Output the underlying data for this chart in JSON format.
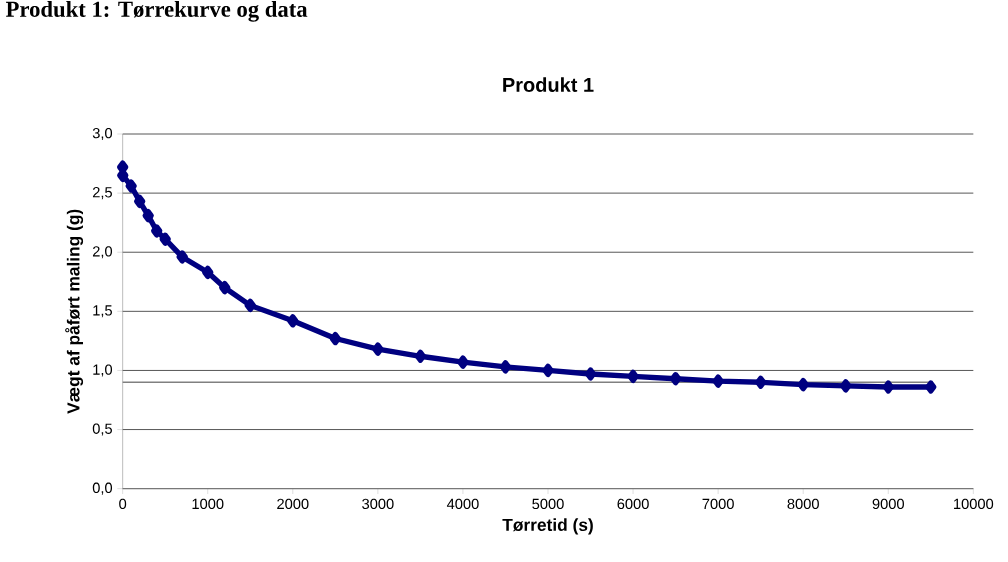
{
  "chart_data": {
    "type": "line",
    "title": "Produkt 1",
    "xlabel": "Tørretid (s)",
    "ylabel": "Vægt af påført maling (g)",
    "annotations": [
      "Produkt 1: Tørrekurve og data"
    ],
    "x": [
      0,
      1,
      100,
      200,
      300,
      400,
      500,
      700,
      1000,
      1200,
      1500,
      2000,
      2500,
      3000,
      3500,
      4000,
      4500,
      5000,
      5500,
      6000,
      6500,
      7000,
      7500,
      8000,
      8500,
      9000,
      9500
    ],
    "series": [
      {
        "color": "#000080",
        "values": [
          2.72,
          2.65,
          2.56,
          2.43,
          2.31,
          2.18,
          2.11,
          1.96,
          1.83,
          1.7,
          1.55,
          1.42,
          1.27,
          1.18,
          1.12,
          1.07,
          1.03,
          1.0,
          0.97,
          0.95,
          0.93,
          0.91,
          0.9,
          0.88,
          0.87,
          0.86,
          0.86
        ]
      }
    ],
    "xlim": [
      0,
      10000
    ],
    "xticks": [
      0,
      1000,
      2000,
      3000,
      4000,
      5000,
      6000,
      7000,
      8000,
      9000,
      10000
    ],
    "ylim": [
      0,
      3
    ],
    "yticks": [
      {
        "value": 0,
        "label": "0,0"
      },
      {
        "value": 0.5,
        "label": "0,5"
      },
      {
        "value": 1,
        "label": "1,0"
      },
      {
        "value": 1.5,
        "label": "1,5"
      },
      {
        "value": 2,
        "label": "2,0"
      },
      {
        "value": 2.5,
        "label": "2,5"
      },
      {
        "value": 3,
        "label": "3,0"
      }
    ],
    "grid": "y",
    "marker": "diamond",
    "line_style": "solid",
    "ref_lines": [
      {
        "axis": "y",
        "value": 0.9,
        "color": "#808080"
      }
    ]
  }
}
